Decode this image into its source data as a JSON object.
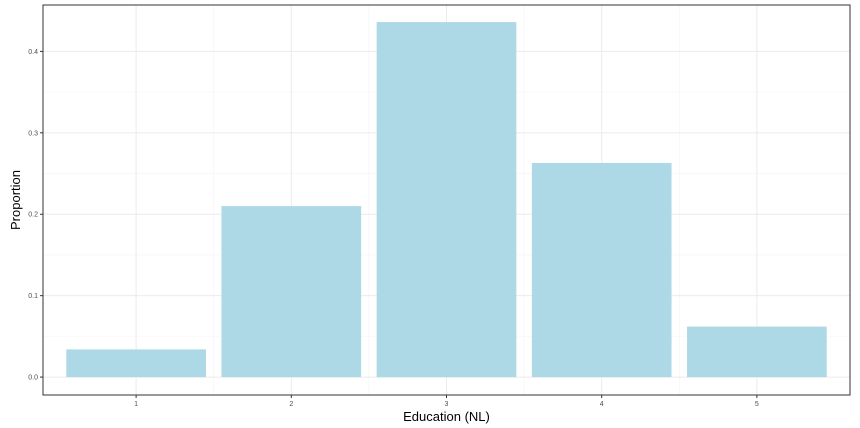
{
  "chart_data": {
    "type": "bar",
    "categories": [
      "1",
      "2",
      "3",
      "4",
      "5"
    ],
    "values": [
      0.034,
      0.21,
      0.436,
      0.263,
      0.062
    ],
    "xlabel": "Education (NL)",
    "ylabel": "Proportion",
    "ylim": [
      -0.022,
      0.457
    ],
    "yticks": [
      0.0,
      0.1,
      0.2,
      0.3,
      0.4
    ],
    "ytick_labels": [
      "0.0",
      "0.1",
      "0.2",
      "0.3",
      "0.4"
    ],
    "bar_color": "#add8e6",
    "grid": true,
    "theme": "bw"
  }
}
